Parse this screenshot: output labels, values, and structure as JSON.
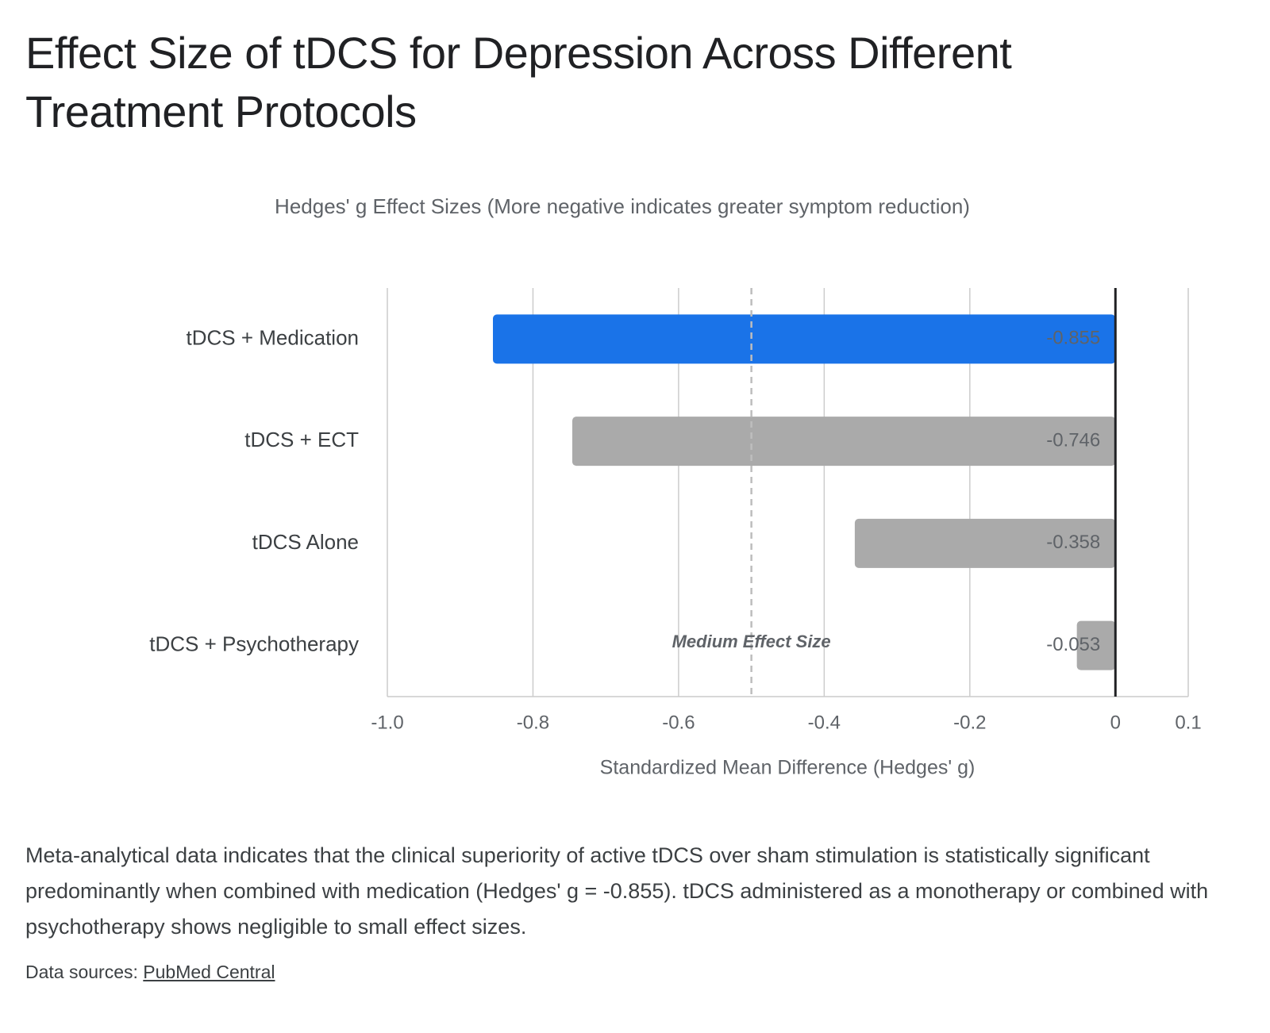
{
  "title": "Effect Size of tDCS for Depression Across Different Treatment Protocols",
  "chart_data": {
    "type": "bar",
    "orientation": "horizontal",
    "subtitle": "Hedges' g Effect Sizes (More negative indicates greater symptom reduction)",
    "categories": [
      "tDCS + Medication",
      "tDCS + ECT",
      "tDCS Alone",
      "tDCS + Psychotherapy"
    ],
    "values": [
      -0.855,
      -0.746,
      -0.358,
      -0.053
    ],
    "colors": [
      "#1a73e8",
      "#aaaaaa",
      "#aaaaaa",
      "#aaaaaa"
    ],
    "xlim": [
      -1,
      0.1
    ],
    "xticks": [
      {
        "value": -1,
        "label": "-1.0"
      },
      -0.8,
      -0.6,
      -0.4,
      -0.2,
      0,
      0.1
    ],
    "xlabel": "Standardized Mean Difference (Hedges' g)",
    "grid": true,
    "reference_line": {
      "value": -0.5,
      "label": "Medium Effect Size"
    }
  },
  "description": "Meta-analytical data indicates that the clinical superiority of active tDCS over sham stimulation is statistically significant predominantly when combined with medication (Hedges' g = -0.855). tDCS administered as a monotherapy or combined with psychotherapy shows negligible to small effect sizes.",
  "sources": {
    "label": "Data sources:",
    "link": "PubMed Central"
  }
}
